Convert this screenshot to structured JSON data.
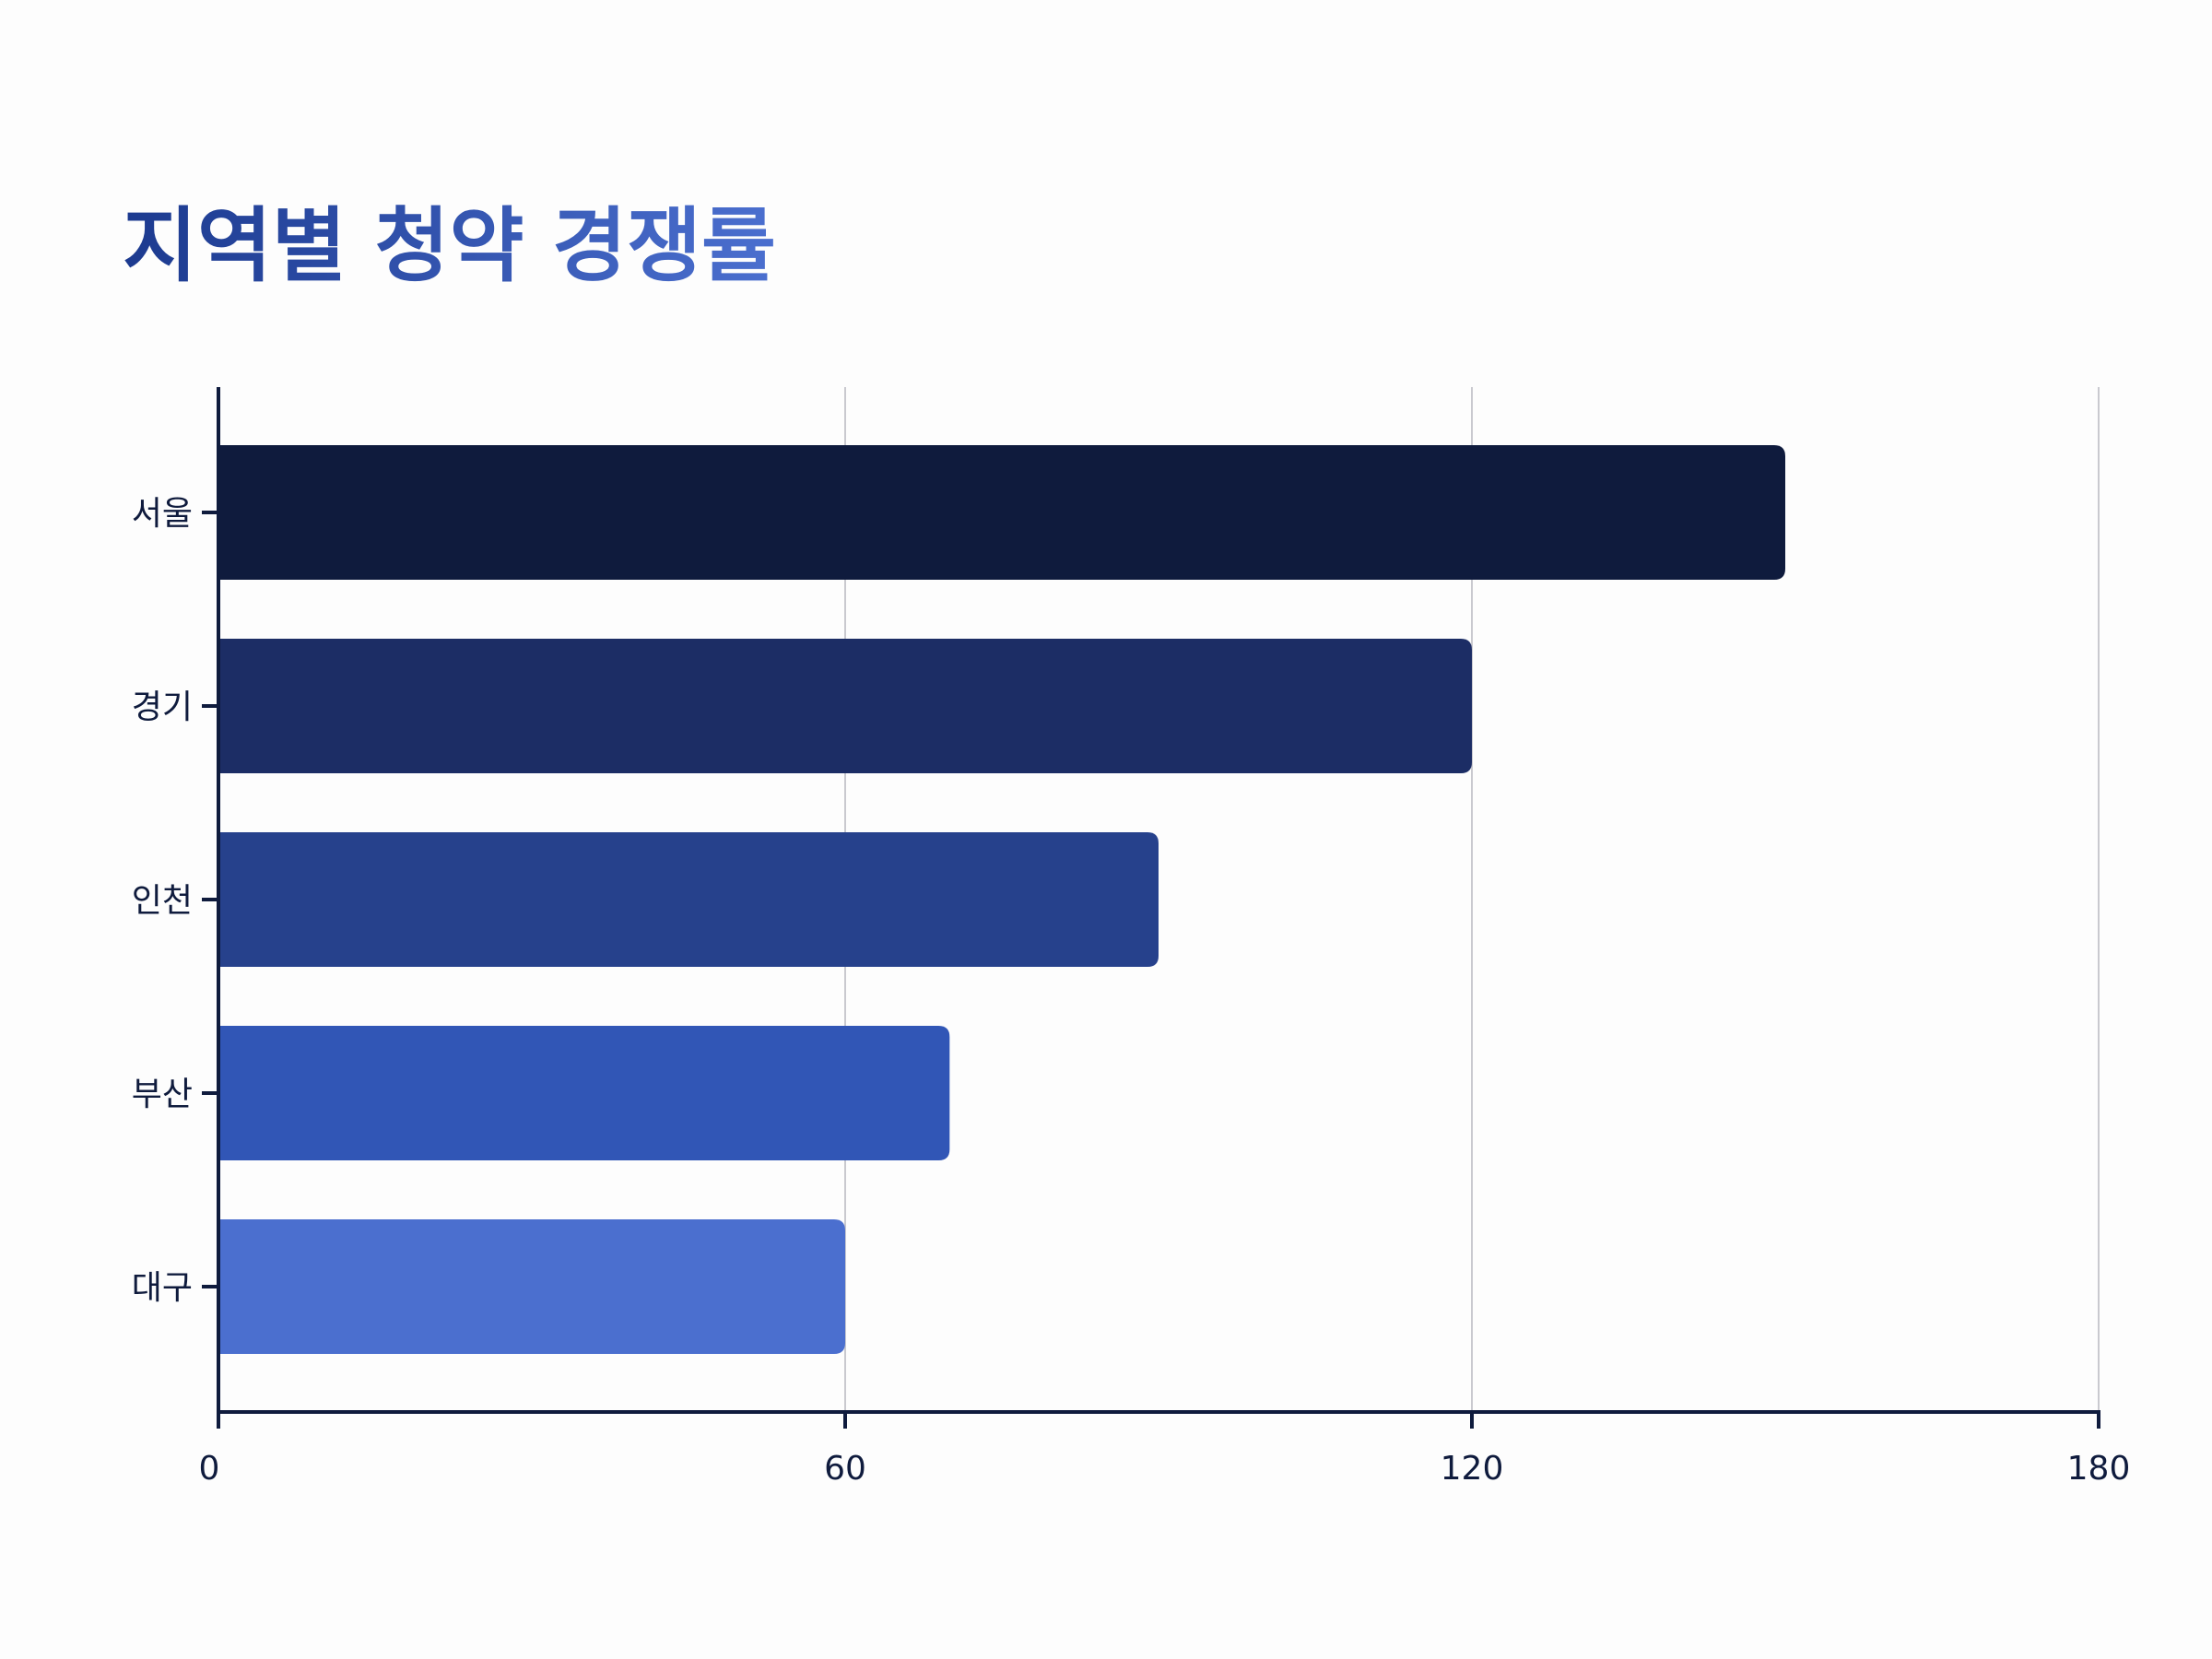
{
  "chart_data": {
    "type": "bar",
    "orientation": "horizontal",
    "title": "지역별 청약 경쟁률",
    "categories": [
      "서울",
      "경기",
      "인천",
      "부산",
      "대구"
    ],
    "values": [
      150,
      120,
      90,
      70,
      60
    ],
    "xlim": [
      0,
      180
    ],
    "xticks": [
      "0",
      "60",
      "120",
      "180"
    ],
    "xlabel": "",
    "ylabel": "",
    "grid": "vertical",
    "legend": "none",
    "bar_colors": [
      "#0f1b3d",
      "#1c2d65",
      "#26418c",
      "#3156b6",
      "#4b6fcf"
    ],
    "title_gradient": [
      "#1c3a8f",
      "#4b6fcf"
    ],
    "axis_color": "#0f1b3d",
    "grid_color": "#c9c9cf"
  }
}
